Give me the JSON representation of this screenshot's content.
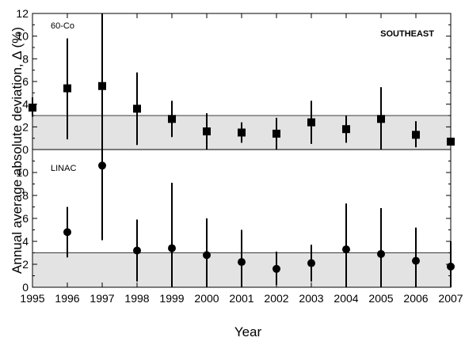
{
  "chart_data": {
    "type": "scatter",
    "xlabel": "Year",
    "ylabel": "Annual average absolute deviation, Δ (%)",
    "x_ticks": [
      "1995",
      "1996",
      "1997",
      "1998",
      "1999",
      "2000",
      "2001",
      "2002",
      "2003",
      "2004",
      "2005",
      "2006",
      "2007"
    ],
    "xlim": [
      1995,
      2007
    ],
    "grid": false,
    "panels": [
      {
        "label": "60-Co",
        "region": "SOUTHEAST",
        "marker": "square",
        "ylim": [
          0,
          12
        ],
        "y_ticks": [
          "0",
          "2",
          "4",
          "6",
          "8",
          "10",
          "12"
        ],
        "tolerance_band": [
          0,
          3
        ],
        "series": {
          "x": [
            1995,
            1996,
            1997,
            1998,
            1999,
            2000,
            2001,
            2002,
            2003,
            2004,
            2005,
            2006,
            2007
          ],
          "y": [
            3.7,
            5.4,
            5.6,
            3.6,
            2.7,
            1.6,
            1.5,
            1.4,
            2.4,
            1.8,
            2.7,
            1.3,
            0.7
          ],
          "err_low": [
            2.9,
            0.9,
            0.0,
            0.4,
            1.1,
            0.0,
            0.6,
            0.0,
            0.5,
            0.6,
            0.0,
            0.2,
            0.5
          ],
          "err_high": [
            4.6,
            9.8,
            12.0,
            6.8,
            4.3,
            3.2,
            2.4,
            2.8,
            4.3,
            3.0,
            5.5,
            2.5,
            1.0
          ]
        }
      },
      {
        "label": "LINAC",
        "region": "",
        "marker": "circle",
        "ylim": [
          0,
          12
        ],
        "y_ticks": [
          "0",
          "2",
          "4",
          "6",
          "8",
          "10"
        ],
        "tolerance_band": [
          0,
          3
        ],
        "series": {
          "x": [
            1996,
            1997,
            1998,
            1999,
            2000,
            2001,
            2002,
            2003,
            2004,
            2005,
            2006,
            2007
          ],
          "y": [
            4.8,
            10.6,
            3.2,
            3.4,
            2.8,
            2.2,
            1.6,
            2.1,
            3.3,
            2.9,
            2.3,
            1.8
          ],
          "err_low": [
            2.6,
            4.1,
            0.5,
            0.0,
            0.0,
            0.0,
            0.2,
            0.5,
            0.0,
            0.0,
            0.0,
            0.0
          ],
          "err_high": [
            7.0,
            12.0,
            5.9,
            9.1,
            6.0,
            5.0,
            3.1,
            3.7,
            7.3,
            6.9,
            5.2,
            4.0
          ]
        }
      }
    ]
  }
}
